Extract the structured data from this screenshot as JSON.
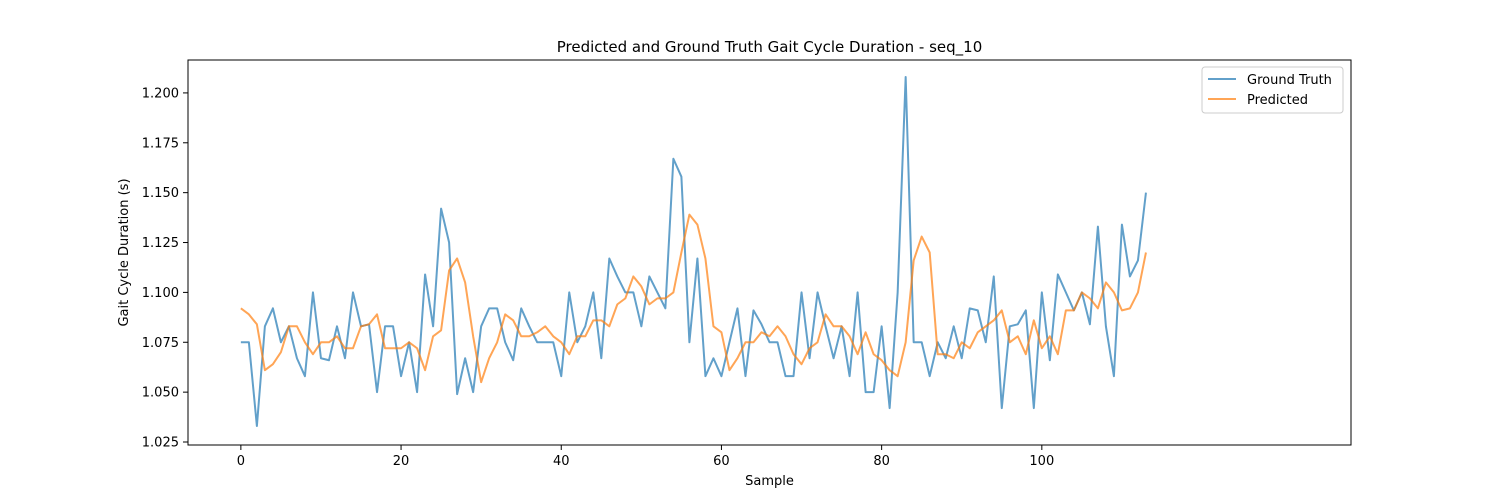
{
  "chart_data": {
    "type": "line",
    "title": "Predicted and Ground Truth Gait Cycle Duration - seq_10",
    "xlabel": "Sample",
    "ylabel": "Gait Cycle Duration (s)",
    "xlim": [
      -6.6,
      138.6
    ],
    "ylim": [
      1.0235,
      1.2165
    ],
    "xticks": [
      0,
      20,
      40,
      60,
      80,
      100
    ],
    "xtick_labels": [
      "0",
      "20",
      "40",
      "60",
      "80",
      "100"
    ],
    "yticks": [
      1.025,
      1.05,
      1.075,
      1.1,
      1.125,
      1.15,
      1.175,
      1.2
    ],
    "ytick_labels": [
      "1.025",
      "1.050",
      "1.075",
      "1.100",
      "1.125",
      "1.150",
      "1.175",
      "1.200"
    ],
    "grid": false,
    "legend_position": "top-right",
    "series": [
      {
        "name": "Ground Truth",
        "color": "#1f77b4",
        "values": [
          1.075,
          1.075,
          1.033,
          1.083,
          1.092,
          1.075,
          1.083,
          1.067,
          1.058,
          1.1,
          1.067,
          1.066,
          1.083,
          1.067,
          1.1,
          1.083,
          1.084,
          1.05,
          1.083,
          1.083,
          1.058,
          1.075,
          1.05,
          1.109,
          1.083,
          1.142,
          1.125,
          1.049,
          1.067,
          1.05,
          1.083,
          1.092,
          1.092,
          1.075,
          1.066,
          1.092,
          1.083,
          1.075,
          1.075,
          1.075,
          1.058,
          1.1,
          1.075,
          1.083,
          1.1,
          1.067,
          1.117,
          1.108,
          1.1,
          1.1,
          1.083,
          1.108,
          1.1,
          1.092,
          1.167,
          1.158,
          1.075,
          1.117,
          1.058,
          1.067,
          1.058,
          1.075,
          1.092,
          1.058,
          1.091,
          1.084,
          1.075,
          1.075,
          1.058,
          1.058,
          1.1,
          1.067,
          1.1,
          1.083,
          1.067,
          1.083,
          1.058,
          1.1,
          1.05,
          1.05,
          1.083,
          1.042,
          1.1,
          1.208,
          1.075,
          1.075,
          1.058,
          1.075,
          1.067,
          1.083,
          1.067,
          1.092,
          1.091,
          1.075,
          1.108,
          1.042,
          1.083,
          1.084,
          1.091,
          1.042,
          1.1,
          1.066,
          1.109,
          1.1,
          1.091,
          1.1,
          1.084,
          1.133,
          1.083,
          1.058,
          1.134,
          1.108,
          1.116,
          1.15
        ]
      },
      {
        "name": "Predicted",
        "color": "#ff7f0e",
        "values": [
          1.092,
          1.089,
          1.084,
          1.061,
          1.064,
          1.07,
          1.083,
          1.083,
          1.075,
          1.069,
          1.075,
          1.075,
          1.078,
          1.072,
          1.072,
          1.083,
          1.084,
          1.089,
          1.072,
          1.072,
          1.072,
          1.075,
          1.072,
          1.061,
          1.078,
          1.081,
          1.111,
          1.117,
          1.105,
          1.078,
          1.055,
          1.067,
          1.075,
          1.089,
          1.086,
          1.078,
          1.078,
          1.08,
          1.083,
          1.078,
          1.075,
          1.069,
          1.078,
          1.078,
          1.086,
          1.086,
          1.083,
          1.094,
          1.097,
          1.108,
          1.103,
          1.094,
          1.097,
          1.097,
          1.1,
          1.12,
          1.139,
          1.134,
          1.117,
          1.083,
          1.08,
          1.061,
          1.067,
          1.075,
          1.075,
          1.08,
          1.078,
          1.083,
          1.078,
          1.069,
          1.064,
          1.072,
          1.075,
          1.089,
          1.083,
          1.083,
          1.078,
          1.069,
          1.08,
          1.069,
          1.066,
          1.061,
          1.058,
          1.075,
          1.116,
          1.128,
          1.12,
          1.069,
          1.069,
          1.067,
          1.075,
          1.072,
          1.08,
          1.083,
          1.086,
          1.091,
          1.075,
          1.078,
          1.069,
          1.086,
          1.072,
          1.078,
          1.069,
          1.091,
          1.091,
          1.1,
          1.097,
          1.092,
          1.105,
          1.1,
          1.091,
          1.092,
          1.1,
          1.12
        ]
      }
    ]
  }
}
